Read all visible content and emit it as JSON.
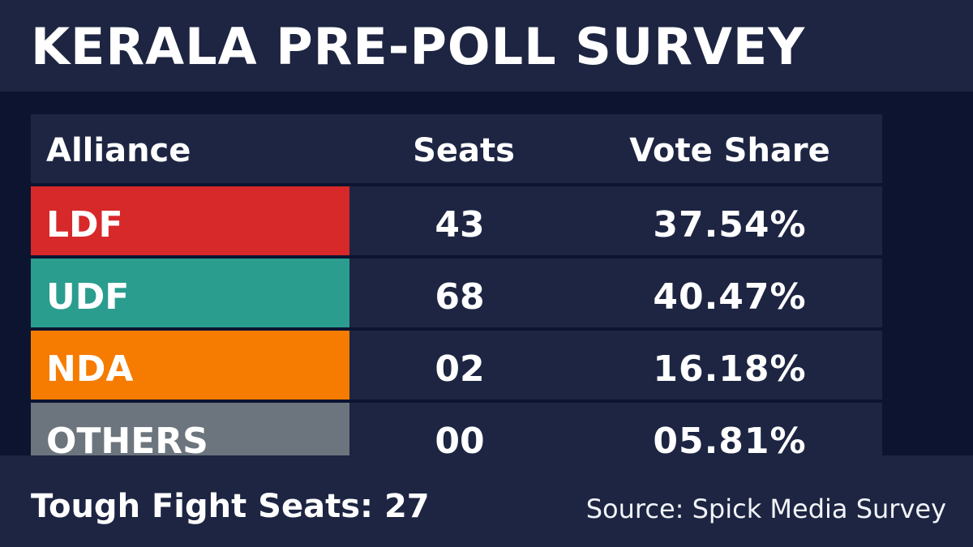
{
  "title": "KERALA PRE-POLL SURVEY",
  "table": {
    "headers": {
      "alliance": "Alliance",
      "seats": "Seats",
      "vote_share": "Vote Share"
    },
    "rows": [
      {
        "alliance": "LDF",
        "seats": "43",
        "vote_share": "37.54%",
        "color": "#d7282a"
      },
      {
        "alliance": "UDF",
        "seats": "68",
        "vote_share": "40.47%",
        "color": "#2a9d8f"
      },
      {
        "alliance": "NDA",
        "seats": "02",
        "vote_share": "16.18%",
        "color": "#f57c00"
      },
      {
        "alliance": "OTHERS",
        "seats": "00",
        "vote_share": "05.81%",
        "color": "#6c757d"
      }
    ]
  },
  "footer": {
    "tough_fight": "Tough Fight Seats: 27",
    "source": "Source: Spick Media Survey"
  }
}
